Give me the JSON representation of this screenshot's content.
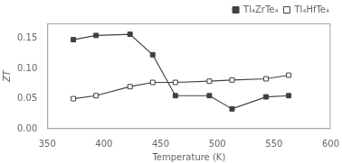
{
  "chart_data": {
    "type": "line",
    "xlabel": "Temperature (K)",
    "ylabel": "ZT",
    "x": [
      373,
      393,
      423,
      443,
      463,
      493,
      513,
      543,
      563
    ],
    "series": [
      {
        "name": "Tl₄ZrTe₄",
        "color": "#404040",
        "marker": "filled_square",
        "values": [
          0.148,
          0.155,
          0.157,
          0.123,
          0.055,
          0.055,
          0.033,
          0.053,
          0.055
        ]
      },
      {
        "name": "Tl₄HfTe₄",
        "color": "#404040",
        "marker": "open_square",
        "values": [
          0.05,
          0.055,
          0.07,
          0.077,
          0.077,
          0.079,
          0.081,
          0.083,
          0.089
        ]
      }
    ],
    "xlim": [
      350,
      600
    ],
    "xticks": [
      350,
      400,
      450,
      500,
      550,
      600
    ],
    "ylim": [
      0,
      0.175
    ],
    "yticks": [
      {
        "value": 0,
        "label": "0.00"
      },
      0.05,
      {
        "value": 0.1,
        "label": "0.10"
      },
      0.15
    ],
    "grid": false,
    "legend": "upper right"
  }
}
